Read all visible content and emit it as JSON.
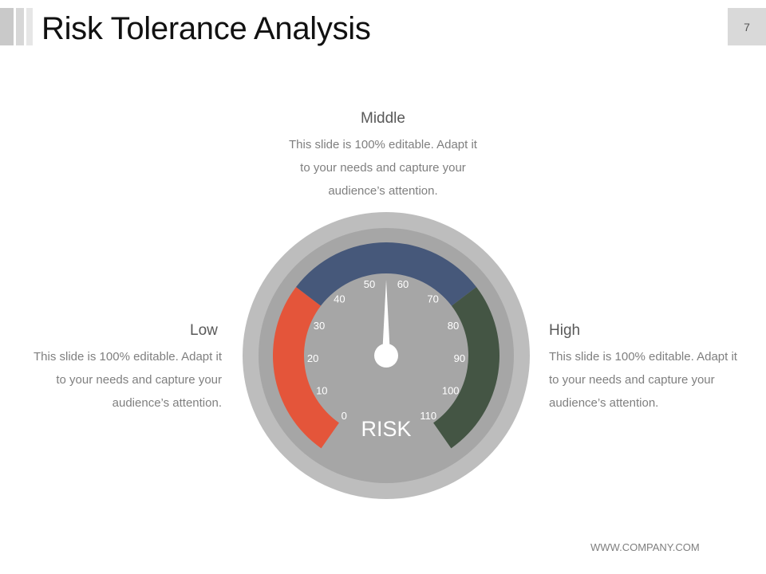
{
  "slide": {
    "title": "Risk Tolerance Analysis",
    "page_number": "7",
    "footer": "WWW.COMPANY.COM"
  },
  "blocks": {
    "middle": {
      "heading": "Middle",
      "body": "This slide is 100% editable. Adapt it to your needs and capture your audience’s attention."
    },
    "low": {
      "heading": "Low",
      "body": "This slide is 100% editable. Adapt it to your needs and capture your audience’s attention."
    },
    "high": {
      "heading": "High",
      "body": "This slide is 100% editable. Adapt it to your needs and capture your audience’s attention."
    }
  },
  "gauge": {
    "label": "RISK",
    "scale_min": 0,
    "scale_max": 110,
    "tick_labels": [
      "0",
      "10",
      "20",
      "30",
      "40",
      "50",
      "60",
      "70",
      "80",
      "90",
      "100",
      "110"
    ],
    "needle_value": 55,
    "zones": [
      {
        "name": "low",
        "from": 0,
        "to": 35,
        "color": "#e4553a"
      },
      {
        "name": "middle",
        "from": 35,
        "to": 75,
        "color": "#46587a"
      },
      {
        "name": "high",
        "from": 75,
        "to": 110,
        "color": "#445544"
      }
    ],
    "colors": {
      "outer_ring": "#bdbdbd",
      "face": "#a6a6a6",
      "labels": "#ffffff"
    }
  }
}
